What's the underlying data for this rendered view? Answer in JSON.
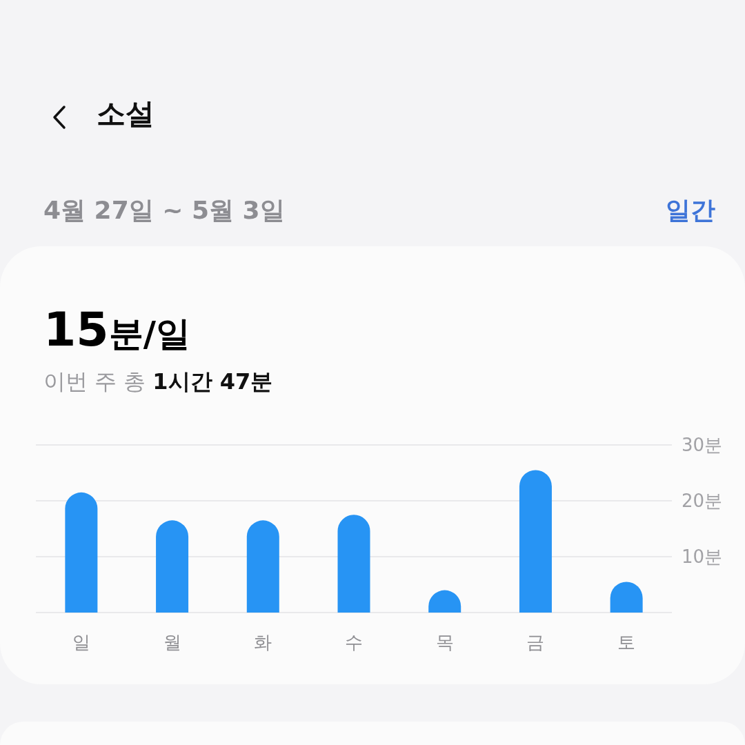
{
  "chart_data": {
    "type": "bar",
    "title": "소설",
    "subtitle": "4월 27일 ~ 5월 3일",
    "annotations": [
      "일간",
      "15분/일",
      "이번 주 총",
      "1시간 47분"
    ],
    "categories": [
      "일",
      "월",
      "화",
      "수",
      "목",
      "금",
      "토"
    ],
    "values": [
      21.5,
      16.5,
      16.5,
      17.5,
      4,
      25.5,
      5.5
    ],
    "color": "#2794f4",
    "ylim": [
      0,
      30
    ],
    "yticks": [
      {
        "value": 0,
        "label": null
      },
      {
        "value": 10,
        "label": "10분"
      },
      {
        "value": 20,
        "label": "20분"
      },
      {
        "value": 30,
        "label": "30분"
      }
    ],
    "grid": "y"
  }
}
